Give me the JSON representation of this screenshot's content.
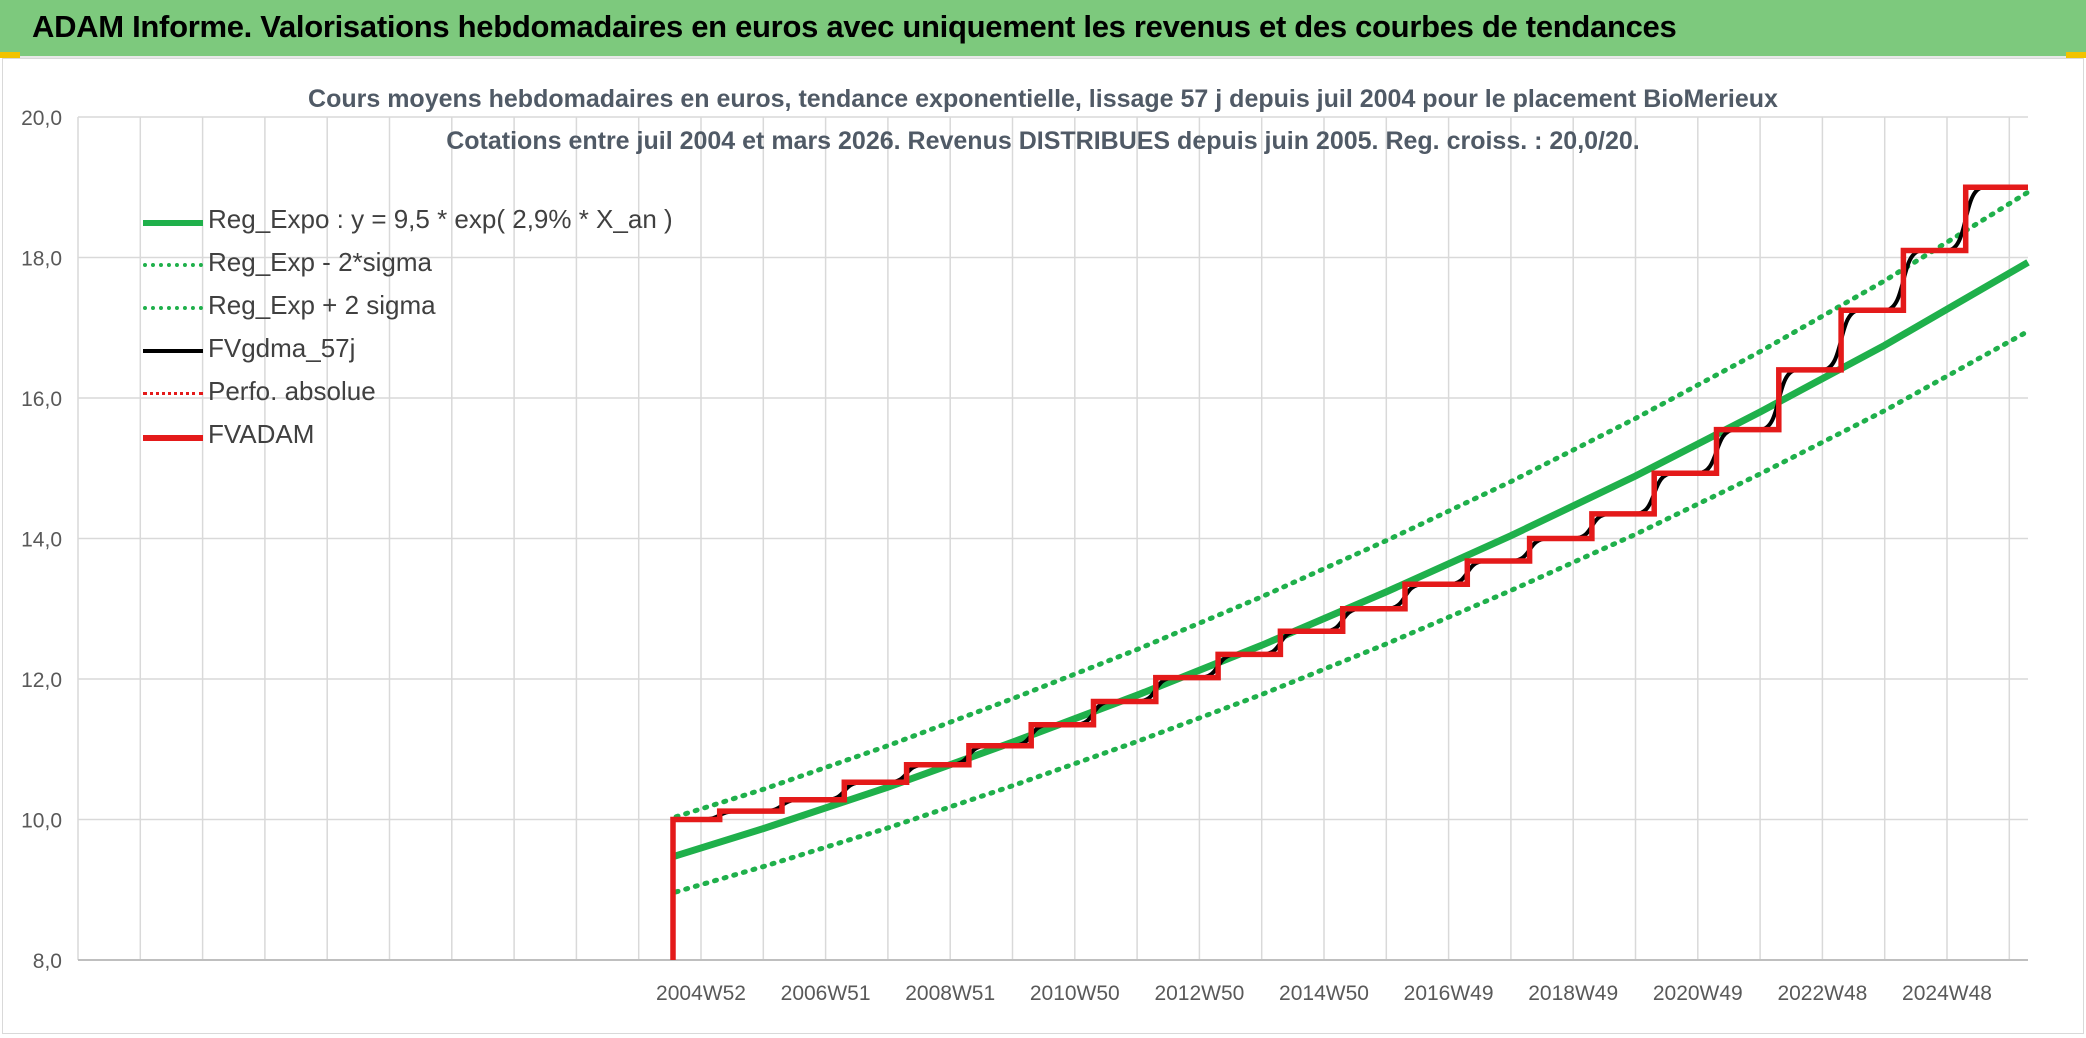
{
  "header": {
    "title": "ADAM Informe. Valorisations hebdomadaires en euros avec uniquement les revenus et des courbes de tendances"
  },
  "colors": {
    "banner": "#7dc97d",
    "reg_expo": "#1fb04b",
    "fvgdma": "#000000",
    "fvadam": "#e41a1a",
    "perfo": "#e41a1a",
    "grid": "#d9d9d9",
    "axis_text": "#595959"
  },
  "chart_data": {
    "type": "line",
    "title": "Cours moyens hebdomadaires en euros, tendance exponentielle, lissage 57 j depuis juil 2004 pour le placement BioMerieux",
    "subtitle": "Cotations entre juil 2004 et mars 2026. Revenus DISTRIBUES depuis juin 2005. Reg. croiss. : 20,0/20.",
    "xlabel": "",
    "ylabel": "",
    "ylim": [
      8,
      20
    ],
    "xlim": [
      1995.0,
      2026.3
    ],
    "y_ticks": [
      "8,0",
      "10,0",
      "12,0",
      "14,0",
      "16,0",
      "18,0",
      "20,0"
    ],
    "x_ticks": [
      {
        "label": "2004W52",
        "x": 2005.0
      },
      {
        "label": "2006W51",
        "x": 2007.0
      },
      {
        "label": "2008W51",
        "x": 2009.0
      },
      {
        "label": "2010W50",
        "x": 2011.0
      },
      {
        "label": "2012W50",
        "x": 2013.0
      },
      {
        "label": "2014W50",
        "x": 2015.0
      },
      {
        "label": "2016W49",
        "x": 2017.0
      },
      {
        "label": "2018W49",
        "x": 2019.0
      },
      {
        "label": "2020W49",
        "x": 2021.0
      },
      {
        "label": "2022W48",
        "x": 2023.0
      },
      {
        "label": "2024W48",
        "x": 2025.0
      }
    ],
    "grid": true,
    "legend_position": "top-left",
    "series": [
      {
        "name": "Reg_Expo : y = 9,5 * exp( 2,9% *  X_an )",
        "style": "solid-thick",
        "color": "#1fb04b",
        "x": [
          2004.55,
          2006,
          2008,
          2010,
          2012,
          2014,
          2016,
          2018,
          2020,
          2022,
          2024,
          2026.3
        ],
        "y": [
          9.47,
          9.87,
          10.46,
          11.1,
          11.77,
          12.48,
          13.24,
          14.04,
          14.89,
          15.8,
          16.75,
          17.93
        ]
      },
      {
        "name": "Reg_Exp - 2*sigma",
        "style": "dotted",
        "color": "#1fb04b",
        "x": [
          2004.6,
          2006,
          2008,
          2010,
          2012,
          2014,
          2016,
          2018,
          2020,
          2022,
          2024,
          2026.3
        ],
        "y": [
          8.97,
          9.33,
          9.88,
          10.48,
          11.11,
          11.78,
          12.5,
          13.26,
          14.06,
          14.92,
          15.82,
          16.95
        ]
      },
      {
        "name": "Reg_Exp + 2 sigma",
        "style": "dotted",
        "color": "#1fb04b",
        "x": [
          2004.6,
          2006,
          2008,
          2010,
          2012,
          2014,
          2016,
          2018,
          2020,
          2022,
          2024,
          2026.3
        ],
        "y": [
          10.04,
          10.43,
          11.05,
          11.72,
          12.42,
          13.17,
          13.97,
          14.81,
          15.71,
          16.66,
          17.67,
          18.93
        ]
      },
      {
        "name": "FVgdma_57j",
        "style": "smooth-steps",
        "color": "#000000",
        "step_levels": [
          10.0,
          10.12,
          10.28,
          10.53,
          10.78,
          11.05,
          11.35,
          11.68,
          12.02,
          12.35,
          12.68,
          13.0,
          13.35,
          13.68,
          14.0,
          14.35,
          14.93,
          15.55,
          16.4,
          17.25,
          18.1,
          19.0
        ],
        "step_x": [
          2005.3,
          2006.3,
          2007.3,
          2008.3,
          2009.3,
          2010.3,
          2011.3,
          2012.3,
          2013.3,
          2014.3,
          2015.3,
          2016.3,
          2017.3,
          2018.3,
          2019.3,
          2020.3,
          2021.3,
          2022.3,
          2023.3,
          2024.3,
          2025.3
        ]
      },
      {
        "name": "Perfo. absolue",
        "style": "dotted",
        "color": "#e41a1a",
        "x": [],
        "y": []
      },
      {
        "name": "FVADAM",
        "style": "steps-thick",
        "color": "#e41a1a",
        "start": {
          "x": 2004.55,
          "y": 8.0
        },
        "step_levels": [
          10.0,
          10.12,
          10.28,
          10.53,
          10.78,
          11.05,
          11.35,
          11.68,
          12.02,
          12.35,
          12.68,
          13.0,
          13.35,
          13.68,
          14.0,
          14.35,
          14.93,
          15.55,
          16.4,
          17.25,
          18.1,
          19.0
        ],
        "step_x": [
          2005.3,
          2006.3,
          2007.3,
          2008.3,
          2009.3,
          2010.3,
          2011.3,
          2012.3,
          2013.3,
          2014.3,
          2015.3,
          2016.3,
          2017.3,
          2018.3,
          2019.3,
          2020.3,
          2021.3,
          2022.3,
          2023.3,
          2024.3,
          2025.3
        ],
        "end_x": 2026.3
      }
    ]
  }
}
